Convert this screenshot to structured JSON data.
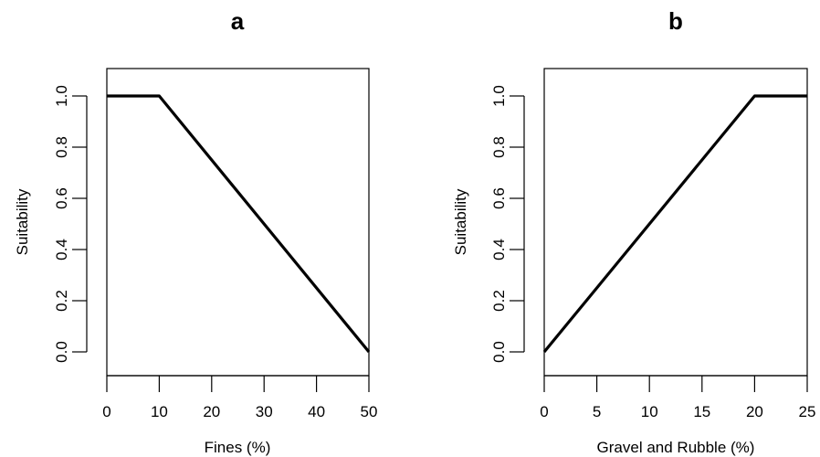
{
  "chart_data": [
    {
      "type": "line",
      "title": "a",
      "xlabel": "Fines (%)",
      "ylabel": "Suitability",
      "xlim": [
        0,
        50
      ],
      "ylim": [
        0,
        1
      ],
      "xticks": [
        "0",
        "10",
        "20",
        "30",
        "40",
        "50"
      ],
      "yticks": [
        "0.0",
        "0.2",
        "0.4",
        "0.6",
        "0.8",
        "1.0"
      ],
      "series": [
        {
          "x": [
            0,
            10,
            50
          ],
          "y": [
            1.0,
            1.0,
            0.0
          ]
        }
      ],
      "grid": false,
      "line_color": "#000000"
    },
    {
      "type": "line",
      "title": "b",
      "xlabel": "Gravel and Rubble (%)",
      "ylabel": "Suitability",
      "xlim": [
        0,
        25
      ],
      "ylim": [
        0,
        1
      ],
      "xticks": [
        "0",
        "5",
        "10",
        "15",
        "20",
        "25"
      ],
      "yticks": [
        "0.0",
        "0.2",
        "0.4",
        "0.6",
        "0.8",
        "1.0"
      ],
      "series": [
        {
          "x": [
            0,
            20,
            25
          ],
          "y": [
            0.0,
            1.0,
            1.0
          ]
        }
      ],
      "grid": false,
      "line_color": "#000000"
    }
  ]
}
